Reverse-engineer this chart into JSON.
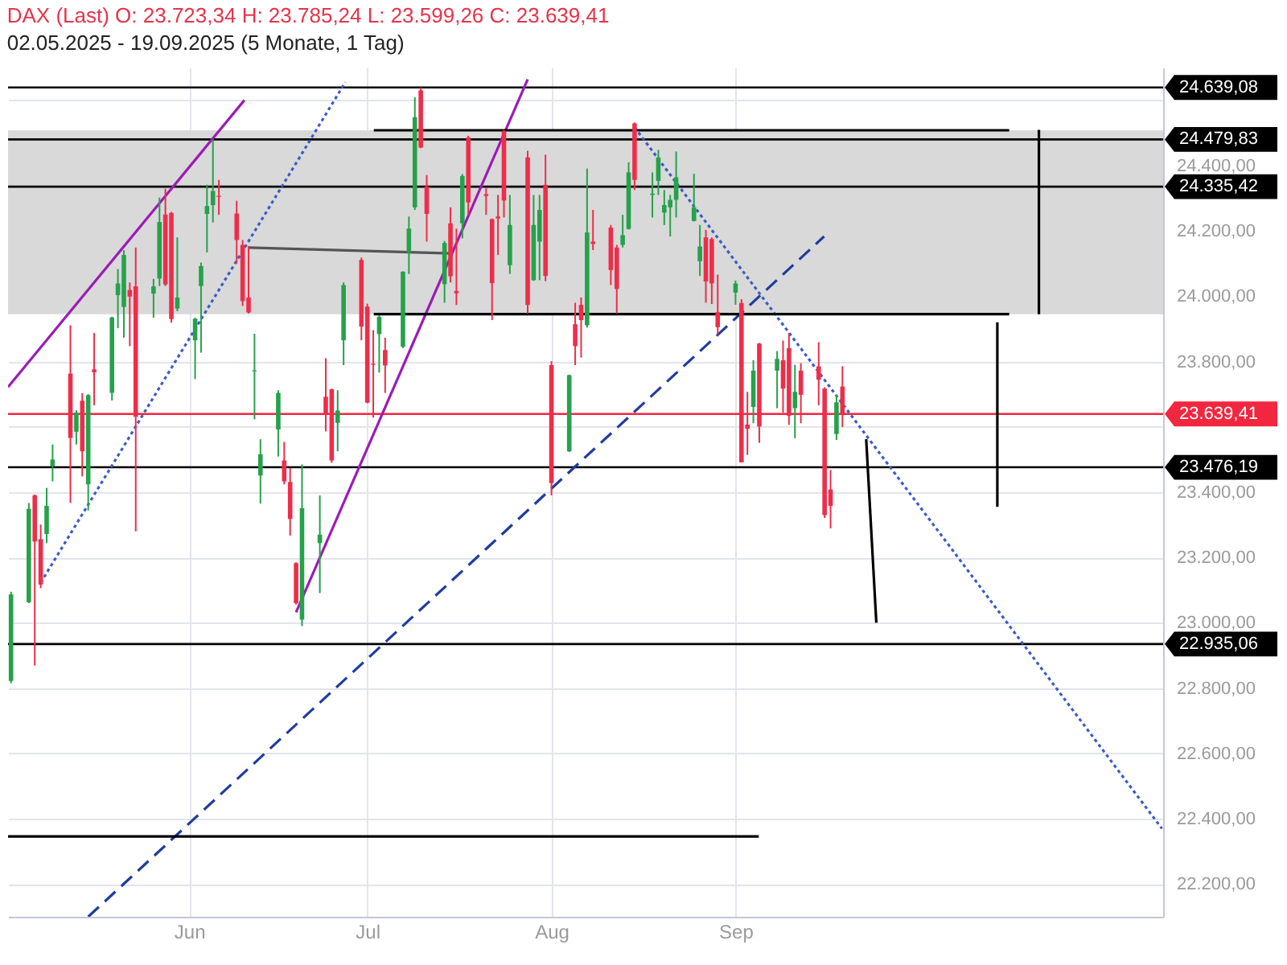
{
  "chart_data": {
    "type": "candlestick",
    "title": "DAX (Last)  O: 23.723,34  H: 23.785,24  L: 23.599,26  C: 23.639,41",
    "subtitle": "02.05.2025 - 19.09.2025  (5 Monate, 1 Tag)",
    "x": [
      "2025-05-02",
      "2025-05-05",
      "2025-05-06",
      "2025-05-07",
      "2025-05-08",
      "2025-05-09",
      "2025-05-12",
      "2025-05-13",
      "2025-05-14",
      "2025-05-15",
      "2025-05-16",
      "2025-05-19",
      "2025-05-20",
      "2025-05-21",
      "2025-05-22",
      "2025-05-23",
      "2025-05-26",
      "2025-05-27",
      "2025-05-28",
      "2025-05-29",
      "2025-05-30",
      "2025-06-02",
      "2025-06-03",
      "2025-06-04",
      "2025-06-05",
      "2025-06-06",
      "2025-06-09",
      "2025-06-10",
      "2025-06-11",
      "2025-06-12",
      "2025-06-13",
      "2025-06-16",
      "2025-06-17",
      "2025-06-18",
      "2025-06-19",
      "2025-06-20",
      "2025-06-23",
      "2025-06-24",
      "2025-06-25",
      "2025-06-26",
      "2025-06-27",
      "2025-06-30",
      "2025-07-01",
      "2025-07-02",
      "2025-07-03",
      "2025-07-04",
      "2025-07-07",
      "2025-07-08",
      "2025-07-09",
      "2025-07-10",
      "2025-07-11",
      "2025-07-14",
      "2025-07-15",
      "2025-07-16",
      "2025-07-17",
      "2025-07-18",
      "2025-07-21",
      "2025-07-22",
      "2025-07-23",
      "2025-07-24",
      "2025-07-25",
      "2025-07-28",
      "2025-07-29",
      "2025-07-30",
      "2025-07-31",
      "2025-08-01",
      "2025-08-04",
      "2025-08-05",
      "2025-08-06",
      "2025-08-07",
      "2025-08-08",
      "2025-08-11",
      "2025-08-12",
      "2025-08-13",
      "2025-08-14",
      "2025-08-15",
      "2025-08-18",
      "2025-08-19",
      "2025-08-20",
      "2025-08-21",
      "2025-08-22",
      "2025-08-25",
      "2025-08-26",
      "2025-08-27",
      "2025-08-28",
      "2025-08-29",
      "2025-09-01",
      "2025-09-02",
      "2025-09-03",
      "2025-09-04",
      "2025-09-05",
      "2025-09-08",
      "2025-09-09",
      "2025-09-10",
      "2025-09-11",
      "2025-09-12",
      "2025-09-15",
      "2025-09-16",
      "2025-09-17",
      "2025-09-18",
      "2025-09-19"
    ],
    "ohlc": [
      [
        22822,
        23095,
        22815,
        23087
      ],
      [
        23063,
        23367,
        23060,
        23349
      ],
      [
        23390,
        23393,
        22869,
        23249
      ],
      [
        23256,
        23301,
        23106,
        23117
      ],
      [
        23272,
        23413,
        23244,
        23358
      ],
      [
        23479,
        23546,
        23433,
        23500
      ],
      [
        23763,
        23911,
        23367,
        23566
      ],
      [
        23585,
        23651,
        23546,
        23643
      ],
      [
        23680,
        23703,
        23448,
        23525
      ],
      [
        23424,
        23700,
        23344,
        23697
      ],
      [
        23776,
        23887,
        23666,
        23767
      ],
      [
        23704,
        23937,
        23681,
        23935
      ],
      [
        24003,
        24083,
        23902,
        24039
      ],
      [
        23967,
        24141,
        23873,
        24126
      ],
      [
        24019,
        24042,
        23847,
        23999
      ],
      [
        24030,
        24149,
        23280,
        23631
      ],
      [
        24008,
        24053,
        23934,
        24030
      ],
      [
        24054,
        24302,
        24031,
        24227
      ],
      [
        24250,
        24329,
        24031,
        24036
      ],
      [
        24255,
        24258,
        23919,
        23930
      ],
      [
        23962,
        24180,
        23954,
        23996
      ],
      [
        23865,
        23934,
        23746,
        23931
      ],
      [
        24031,
        24103,
        23827,
        24092
      ],
      [
        24252,
        24341,
        24134,
        24276
      ],
      [
        24279,
        24479.83,
        24226,
        24322
      ],
      [
        24307,
        24356,
        24249,
        24304
      ],
      [
        24253,
        24292,
        24100,
        24172
      ],
      [
        24157,
        24172,
        23970,
        23985
      ],
      [
        23996,
        24153,
        23947,
        23950
      ],
      [
        23770,
        23885,
        23623,
        23773
      ],
      [
        23451,
        23562,
        23365,
        23516
      ],
      [
        23592,
        23712,
        23509,
        23704
      ],
      [
        23497,
        23554,
        23424,
        23433
      ],
      [
        23431,
        23474,
        23267,
        23318
      ],
      [
        23183,
        23185,
        23056,
        23060
      ],
      [
        23010,
        23485,
        22990,
        23351
      ],
      [
        23244,
        23390,
        23091,
        23270
      ],
      [
        23692,
        23810,
        23586,
        23640
      ],
      [
        23715,
        23717,
        23490,
        23497
      ],
      [
        23612,
        23712,
        23525,
        23650
      ],
      [
        23865,
        24042,
        23789,
        24034
      ],
      [
        24111,
        24118,
        23865,
        23907
      ],
      [
        23968,
        23977,
        23672,
        23674
      ],
      [
        23793,
        23896,
        23628,
        23790
      ],
      [
        23884,
        23942,
        23766,
        23937
      ],
      [
        23835,
        23873,
        23704,
        23788
      ],
      [
        23845,
        24076,
        23841,
        24075
      ],
      [
        24134,
        24244,
        24068,
        24207
      ],
      [
        24272,
        24609,
        24264,
        24548
      ],
      [
        24630,
        24639.08,
        24453,
        24455
      ],
      [
        24336,
        24371,
        24167,
        24252
      ],
      [
        24037,
        24169,
        23980,
        24163
      ],
      [
        24223,
        24272,
        24042,
        24061
      ],
      [
        24016,
        24207,
        23973,
        24009
      ],
      [
        24223,
        24374,
        24177,
        24368
      ],
      [
        24486,
        24491,
        24249,
        24287
      ],
      [
        24312,
        24333,
        24249,
        24307
      ],
      [
        24236,
        24238,
        23927,
        24040
      ],
      [
        24244,
        24310,
        24126,
        24238
      ],
      [
        24506,
        24509,
        24241,
        24293
      ],
      [
        24095,
        24310,
        24068,
        24218
      ],
      [
        24425,
        24445,
        23947,
        23973
      ],
      [
        24049,
        24310,
        24047,
        24218
      ],
      [
        24167,
        24310,
        24049,
        24264
      ],
      [
        24341,
        24433,
        24046,
        24062
      ],
      [
        23789,
        23801,
        23390,
        23428
      ],
      [
        23525,
        23760,
        23523,
        23758
      ],
      [
        23914,
        23980,
        23789,
        23847
      ],
      [
        23973,
        23996,
        23812,
        23927
      ],
      [
        23911,
        24391,
        23904,
        24195
      ],
      [
        24167,
        24264,
        24141,
        24160
      ],
      [
        24210,
        24218,
        24034,
        24080
      ],
      [
        24149,
        24157,
        23947,
        24022
      ],
      [
        24157,
        24249,
        24149,
        24187
      ],
      [
        24206,
        24410,
        24204,
        24379
      ],
      [
        24529,
        24532,
        24325,
        24356
      ],
      [
        24310,
        24379,
        24241,
        24314
      ],
      [
        24353,
        24448,
        24310,
        24425
      ],
      [
        24256,
        24325,
        24218,
        24279
      ],
      [
        24272,
        24310,
        24183,
        24295
      ],
      [
        24295,
        24443,
        24241,
        24364
      ],
      [
        24230,
        24375,
        24229,
        24272
      ],
      [
        24107,
        24218,
        24062,
        24152
      ],
      [
        24180,
        24203,
        23980,
        24045
      ],
      [
        24175,
        24180,
        23976,
        24039
      ],
      [
        23951,
        24066,
        23882,
        23905
      ],
      [
        24011,
        24048,
        23974,
        24039
      ],
      [
        23979,
        23991,
        23491,
        23491
      ],
      [
        23607,
        23707,
        23514,
        23594
      ],
      [
        23661,
        23804,
        23611,
        23772
      ],
      [
        23855,
        23857,
        23551,
        23601
      ],
      [
        23772,
        23832,
        23657,
        23808
      ],
      [
        23804,
        23864,
        23643,
        23717
      ],
      [
        23841,
        23887,
        23606,
        23634
      ],
      [
        23657,
        23790,
        23565,
        23707
      ],
      [
        23772,
        23795,
        23611,
        23698
      ],
      [
        23785,
        23859,
        23666,
        23744
      ],
      [
        23717,
        23721,
        23321,
        23330
      ],
      [
        23408,
        23468,
        23289,
        23358
      ],
      [
        23578,
        23698,
        23560,
        23675
      ],
      [
        23723.34,
        23785.24,
        23599.26,
        23639.41
      ]
    ],
    "colors": [
      "#26a14b",
      "#26a14b",
      "#ee2d4a",
      "#ee2d4a",
      "#26a14b",
      "#26a14b",
      "#ee2d4a",
      "#26a14b",
      "#ee2d4a",
      "#26a14b",
      "#ee2d4a",
      "#26a14b",
      "#26a14b",
      "#26a14b",
      "#ee2d4a",
      "#ee2d4a",
      "#26a14b",
      "#26a14b",
      "#ee2d4a",
      "#ee2d4a",
      "#26a14b",
      "#26a14b",
      "#26a14b",
      "#26a14b",
      "#26a14b",
      "#ee2d4a",
      "#ee2d4a",
      "#ee2d4a",
      "#ee2d4a",
      "#26a14b",
      "#26a14b",
      "#26a14b",
      "#ee2d4a",
      "#ee2d4a",
      "#ee2d4a",
      "#26a14b",
      "#26a14b",
      "#ee2d4a",
      "#ee2d4a",
      "#26a14b",
      "#26a14b",
      "#ee2d4a",
      "#ee2d4a",
      "#ee2d4a",
      "#26a14b",
      "#ee2d4a",
      "#26a14b",
      "#26a14b",
      "#26a14b",
      "#ee2d4a",
      "#ee2d4a",
      "#26a14b",
      "#ee2d4a",
      "#ee2d4a",
      "#26a14b",
      "#ee2d4a",
      "#ee2d4a",
      "#ee2d4a",
      "#ee2d4a",
      "#ee2d4a",
      "#26a14b",
      "#ee2d4a",
      "#26a14b",
      "#26a14b",
      "#ee2d4a",
      "#ee2d4a",
      "#26a14b",
      "#ee2d4a",
      "#ee2d4a",
      "#26a14b",
      "#ee2d4a",
      "#ee2d4a",
      "#ee2d4a",
      "#26a14b",
      "#26a14b",
      "#ee2d4a",
      "#26a14b",
      "#26a14b",
      "#26a14b",
      "#26a14b",
      "#26a14b",
      "#26a14b",
      "#26a14b",
      "#ee2d4a",
      "#ee2d4a",
      "#ee2d4a",
      "#26a14b",
      "#ee2d4a",
      "#ee2d4a",
      "#26a14b",
      "#ee2d4a",
      "#26a14b",
      "#ee2d4a",
      "#ee2d4a",
      "#26a14b",
      "#ee2d4a",
      "#ee2d4a",
      "#ee2d4a",
      "#ee2d4a",
      "#26a14b",
      "#ee2d4a"
    ],
    "xlim": [
      "2025-05-01T12:00",
      "2025-11-12"
    ],
    "xticks": [
      {
        "value": "2025-06-01",
        "label": "Jun"
      },
      {
        "value": "2025-07-01",
        "label": "Jul"
      },
      {
        "value": "2025-08-01",
        "label": "Aug"
      },
      {
        "value": "2025-09-01",
        "label": "Sep"
      }
    ],
    "ylim": [
      22100,
      24700
    ],
    "yticks": [
      {
        "value": 22200,
        "label": "22.200,00"
      },
      {
        "value": 22400,
        "label": "22.400,00"
      },
      {
        "value": 22600,
        "label": "22.600,00"
      },
      {
        "value": 22800,
        "label": "22.800,00"
      },
      {
        "value": 23000,
        "label": "23.000,00"
      },
      {
        "value": 23200,
        "label": "23.200,00"
      },
      {
        "value": 23400,
        "label": "23.400,00"
      },
      {
        "value": 23600,
        "label": null
      },
      {
        "value": 23800,
        "label": "23.800,00"
      },
      {
        "value": 24000,
        "label": "24.000,00"
      },
      {
        "value": 24200,
        "label": "24.200,00"
      },
      {
        "value": 24400,
        "label": "24.400,00"
      },
      {
        "value": 24600,
        "label": null
      }
    ],
    "grid": true,
    "bands": [
      {
        "axis": "y",
        "from": 23945,
        "to": 24508,
        "color": "#d9d9d9"
      }
    ],
    "ref_lines": [
      {
        "axis": "y",
        "value": 24639.08,
        "label": "24.639,08",
        "color": "#000000"
      },
      {
        "axis": "y",
        "value": 24479.83,
        "label": "24.479,83",
        "color": "#000000"
      },
      {
        "axis": "y",
        "value": 24335.42,
        "label": "24.335,42",
        "color": "#000000"
      },
      {
        "axis": "y",
        "value": 23639.41,
        "label": "23.639,41",
        "color": "#f2263f"
      },
      {
        "axis": "y",
        "value": 23476.19,
        "label": "23.476,19",
        "color": "#000000"
      },
      {
        "axis": "y",
        "value": 22935.06,
        "label": "22.935,06",
        "color": "#000000"
      }
    ],
    "series": [
      {
        "type": "line",
        "x": [
          "2025-05-01T12:00",
          "2025-06-10T07:00"
        ],
        "values": [
          23722,
          24600
        ],
        "color": "#9c1bb5",
        "line_style": "solid"
      },
      {
        "type": "line",
        "x": [
          "2025-06-19",
          "2025-07-28"
        ],
        "values": [
          23032,
          24664
        ],
        "color": "#9c1bb5",
        "line_style": "solid"
      },
      {
        "type": "line",
        "x": [
          "2025-05-07",
          "2025-06-27T07:00"
        ],
        "values": [
          23123,
          24655
        ],
        "color": "#3a5cc4",
        "line_style": "dotted"
      },
      {
        "type": "line",
        "x": [
          "2025-05-15",
          "2025-09-15T22:00"
        ],
        "values": [
          22100,
          24183
        ],
        "color": "#1f3c9e",
        "line_style": "dashed"
      },
      {
        "type": "line",
        "x": [
          "2025-08-15",
          "2025-11-11T19:00"
        ],
        "values": [
          24517,
          22370
        ],
        "color": "#3a5cc4",
        "line_style": "dotted"
      },
      {
        "type": "line",
        "x": [
          "2025-06-11",
          "2025-07-15T05:00"
        ],
        "values": [
          24149,
          24131
        ],
        "color": "#555555",
        "line_style": "solid"
      },
      {
        "type": "line",
        "x": [
          "2025-05-01T12:00",
          "2025-09-04T22:00"
        ],
        "values": [
          22346,
          22346
        ],
        "color": "#000000",
        "line_style": "solid"
      },
      {
        "type": "line",
        "x": [
          "2025-07-02T02:00",
          "2025-10-17T02:00"
        ],
        "values": [
          24508,
          24508
        ],
        "color": "#000000",
        "line_style": "solid"
      },
      {
        "type": "line",
        "x": [
          "2025-07-02T02:00",
          "2025-10-17T02:00"
        ],
        "values": [
          23945,
          23945
        ],
        "color": "#000000",
        "line_style": "solid"
      },
      {
        "type": "line",
        "x": [
          "2025-10-22T02:00",
          "2025-10-22T02:00"
        ],
        "values": [
          24509,
          23945
        ],
        "color": "#000000",
        "line_style": "solid"
      },
      {
        "type": "line",
        "x": [
          "2025-10-15T02:00",
          "2025-10-15T02:00"
        ],
        "values": [
          23920,
          23355
        ],
        "color": "#000000",
        "line_style": "solid"
      },
      {
        "type": "line",
        "x": [
          "2025-09-23",
          "2025-09-24T17:00"
        ],
        "values": [
          23562,
          23000
        ],
        "color": "#000000",
        "line_style": "solid"
      }
    ]
  }
}
